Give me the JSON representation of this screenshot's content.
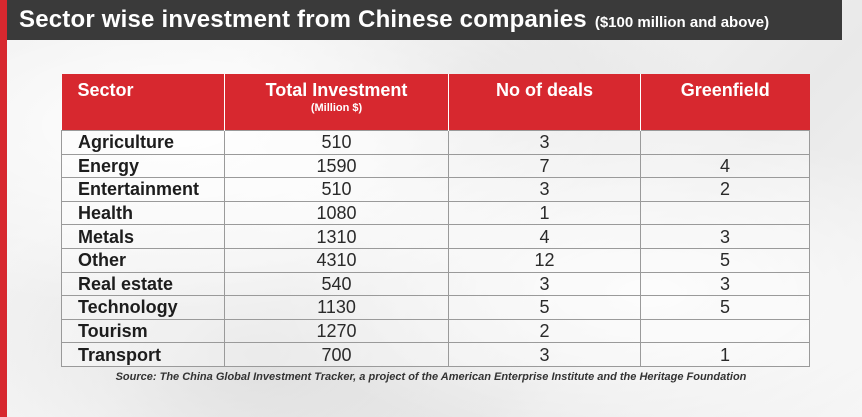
{
  "title": "Sector wise investment from Chinese companies",
  "subtitle": "($100 million and above)",
  "source": "Source: The China Global Investment Tracker, a project of the American Enterprise Institute and the Heritage Foundation",
  "colors": {
    "accent": "#d7282f",
    "title_bg": "#3a3a3a"
  },
  "chart_data": {
    "type": "table",
    "columns": [
      {
        "label": "Sector",
        "sublabel": ""
      },
      {
        "label": "Total Investment",
        "sublabel": "(Million $)"
      },
      {
        "label": "No of deals",
        "sublabel": ""
      },
      {
        "label": "Greenfield",
        "sublabel": ""
      }
    ],
    "rows": [
      {
        "sector": "Agriculture",
        "investment": "510",
        "deals": "3",
        "greenfield": ""
      },
      {
        "sector": "Energy",
        "investment": "1590",
        "deals": "7",
        "greenfield": "4"
      },
      {
        "sector": "Entertainment",
        "investment": "510",
        "deals": "3",
        "greenfield": "2"
      },
      {
        "sector": "Health",
        "investment": "1080",
        "deals": "1",
        "greenfield": ""
      },
      {
        "sector": "Metals",
        "investment": "1310",
        "deals": "4",
        "greenfield": "3"
      },
      {
        "sector": "Other",
        "investment": "4310",
        "deals": "12",
        "greenfield": "5"
      },
      {
        "sector": "Real estate",
        "investment": "540",
        "deals": "3",
        "greenfield": "3"
      },
      {
        "sector": "Technology",
        "investment": "1130",
        "deals": "5",
        "greenfield": "5"
      },
      {
        "sector": "Tourism",
        "investment": "1270",
        "deals": "2",
        "greenfield": ""
      },
      {
        "sector": "Transport",
        "investment": "700",
        "deals": "3",
        "greenfield": "1"
      }
    ]
  }
}
